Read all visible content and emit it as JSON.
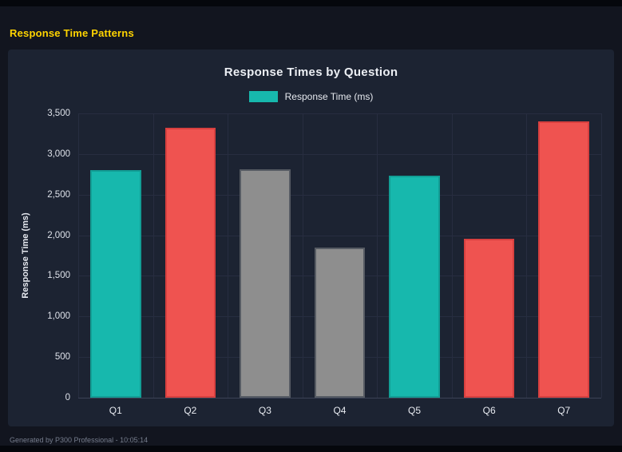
{
  "page": {
    "title": "Response Time Patterns",
    "footer": "Generated by P300 Professional - 10:05:14"
  },
  "colors": {
    "accent_title": "#ffd400",
    "teal": "#17b8ad",
    "red": "#ef5350",
    "gray": "#8e8e8e",
    "panel_bg": "#1c2332",
    "page_bg": "#12151f"
  },
  "chart_data": {
    "type": "bar",
    "title": "Response Times by Question",
    "legend": [
      {
        "label": "Response Time (ms)",
        "color": "#17b8ad"
      }
    ],
    "legend_position": "top",
    "categories": [
      "Q1",
      "Q2",
      "Q3",
      "Q4",
      "Q5",
      "Q6",
      "Q7"
    ],
    "values": [
      2800,
      3320,
      2810,
      1850,
      2730,
      1960,
      3400
    ],
    "bar_colors": [
      "#17b8ad",
      "#ef5350",
      "#8e8e8e",
      "#8e8e8e",
      "#17b8ad",
      "#ef5350",
      "#ef5350"
    ],
    "bar_borders": [
      "#129e95",
      "#d8403f",
      "#565b63",
      "#565b63",
      "#129e95",
      "#d8403f",
      "#d8403f"
    ],
    "xlabel": "",
    "ylabel": "Response Time (ms)",
    "ylim": [
      0,
      3500
    ],
    "yticks": [
      0,
      500,
      1000,
      1500,
      2000,
      2500,
      3000,
      3500
    ],
    "ytick_labels": [
      "0",
      "500",
      "1,000",
      "1,500",
      "2,000",
      "2,500",
      "3,000",
      "3,500"
    ],
    "grid": true
  }
}
